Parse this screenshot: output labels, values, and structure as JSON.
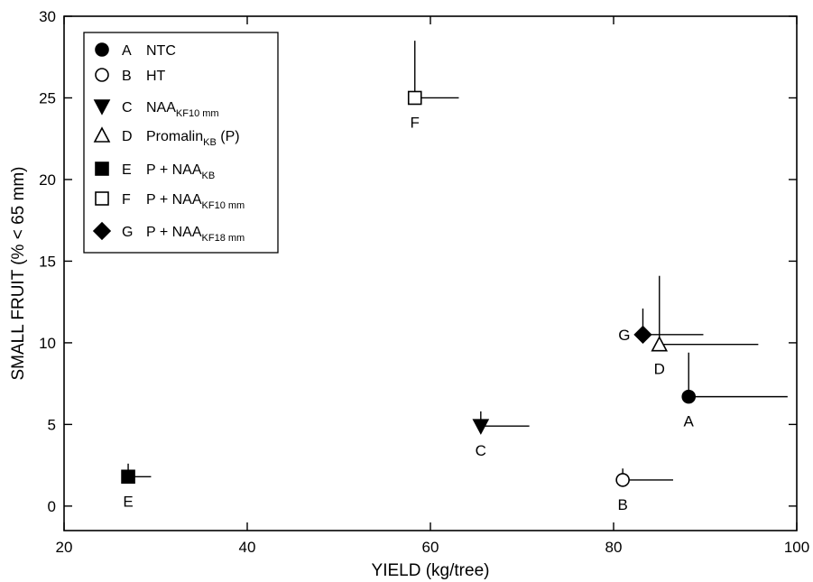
{
  "chart_data": {
    "type": "scatter",
    "xlabel": "YIELD (kg/tree)",
    "ylabel": "SMALL FRUIT (% < 65 mm)",
    "xlim": [
      20,
      100
    ],
    "ylim": [
      -1.5,
      30
    ],
    "xticks": [
      20,
      40,
      60,
      80,
      100
    ],
    "yticks": [
      0,
      5,
      10,
      15,
      20,
      25,
      30
    ],
    "grid": false,
    "legend_placement": "top-left",
    "points": [
      {
        "id": "A",
        "letter": "A",
        "treatment": "NTC",
        "sub": "",
        "suffix": "",
        "marker": "circle-filled",
        "x": 88.2,
        "y": 6.7,
        "err_x": 10.8,
        "err_y": 2.7,
        "label_pos": "below"
      },
      {
        "id": "B",
        "letter": "B",
        "treatment": "HT",
        "sub": "",
        "suffix": "",
        "marker": "circle-open",
        "x": 81.0,
        "y": 1.6,
        "err_x": 5.5,
        "err_y": 0.7,
        "label_pos": "below"
      },
      {
        "id": "C",
        "letter": "C",
        "treatment": "NAA",
        "sub": "KF10 mm",
        "suffix": "",
        "marker": "triangle-down-filled",
        "x": 65.5,
        "y": 4.9,
        "err_x": 5.3,
        "err_y": 0.9,
        "label_pos": "below"
      },
      {
        "id": "D",
        "letter": "D",
        "treatment": "Promalin",
        "sub": "KB",
        "suffix": " (P)",
        "marker": "triangle-up-open",
        "x": 85.0,
        "y": 9.9,
        "err_x": 10.8,
        "err_y": 4.2,
        "label_pos": "below"
      },
      {
        "id": "E",
        "letter": "E",
        "treatment": "P + NAA",
        "sub": "KB",
        "suffix": "",
        "marker": "square-filled",
        "x": 27.0,
        "y": 1.8,
        "err_x": 2.5,
        "err_y": 0.8,
        "label_pos": "below"
      },
      {
        "id": "F",
        "letter": "F",
        "treatment": "P + NAA",
        "sub": "KF10 mm",
        "suffix": "",
        "marker": "square-open",
        "x": 58.3,
        "y": 25.0,
        "err_x": 4.8,
        "err_y": 3.5,
        "label_pos": "below"
      },
      {
        "id": "G",
        "letter": "G",
        "treatment": "P + NAA",
        "sub": "KF18 mm",
        "suffix": "",
        "marker": "diamond-filled",
        "x": 83.2,
        "y": 10.5,
        "err_x": 6.6,
        "err_y": 1.6,
        "label_pos": "left"
      }
    ]
  }
}
